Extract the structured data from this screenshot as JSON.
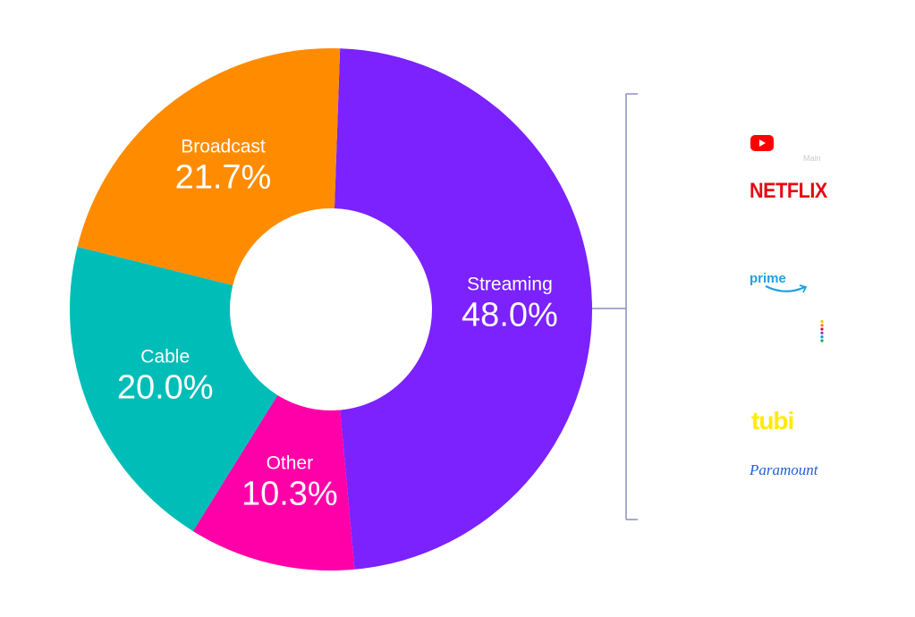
{
  "chart_data": {
    "type": "pie",
    "variant": "donut",
    "title": "",
    "series": [
      {
        "name": "Streaming",
        "value": 48.0,
        "label": "48.0%",
        "color": "#7B22FF"
      },
      {
        "name": "Other",
        "value": 10.3,
        "label": "10.3%",
        "color": "#FF00A8"
      },
      {
        "name": "Cable",
        "value": 20.0,
        "label": "20.0%",
        "color": "#00BDB8"
      },
      {
        "name": "Broadcast",
        "value": 21.7,
        "label": "21.7%",
        "color": "#FF8C00"
      }
    ],
    "annotation": {
      "bracket_target": "Streaming",
      "bracket_color": "#8A8FC0",
      "logos": [
        {
          "name": "YouTube",
          "icon": "youtube-logo",
          "sublabel": "Main"
        },
        {
          "name": "Netflix",
          "text": "NETFLIX",
          "color": "#E50914"
        },
        {
          "name": "Prime Video",
          "text": "prime",
          "color": "#1FA0E0"
        },
        {
          "name": "Peacock",
          "icon": "peacock-dots-logo"
        },
        {
          "name": "Tubi",
          "text": "tubi",
          "color": "#FFEB00"
        },
        {
          "name": "Paramount",
          "text": "Paramount",
          "color": "#1F5FD8"
        }
      ]
    }
  }
}
